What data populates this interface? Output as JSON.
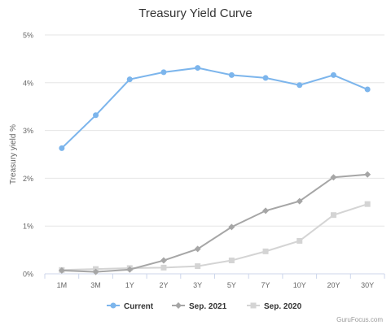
{
  "chart_data": {
    "type": "line",
    "title": "Treasury Yield Curve",
    "xlabel": "",
    "ylabel": "Treasury yield %",
    "categories": [
      "1M",
      "3M",
      "1Y",
      "2Y",
      "3Y",
      "5Y",
      "7Y",
      "10Y",
      "20Y",
      "30Y"
    ],
    "y_ticks": [
      "0%",
      "1%",
      "2%",
      "3%",
      "4%",
      "5%"
    ],
    "ylim": [
      0,
      5
    ],
    "grid": true,
    "legend_position": "bottom",
    "series": [
      {
        "name": "Current",
        "color": "#7cb5ec",
        "marker": "circle",
        "values": [
          2.63,
          3.32,
          4.07,
          4.22,
          4.31,
          4.16,
          4.1,
          3.95,
          4.16,
          3.86
        ]
      },
      {
        "name": "Sep. 2021",
        "color": "#a6a6a6",
        "marker": "diamond",
        "values": [
          0.07,
          0.04,
          0.09,
          0.28,
          0.52,
          0.98,
          1.32,
          1.52,
          2.02,
          2.08
        ]
      },
      {
        "name": "Sep. 2020",
        "color": "#d4d4d4",
        "marker": "square",
        "values": [
          0.08,
          0.1,
          0.12,
          0.13,
          0.16,
          0.28,
          0.47,
          0.69,
          1.23,
          1.46
        ]
      }
    ],
    "credit": "GuruFocus.com"
  }
}
